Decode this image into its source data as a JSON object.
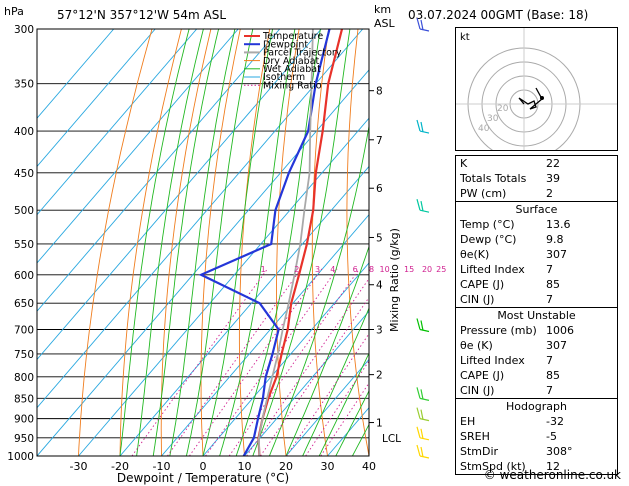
{
  "header": {
    "hpa_label": "hPa",
    "location": "57°12'N  357°12'W  54m  ASL",
    "km_label": "km",
    "asl_label": "ASL",
    "datetime": "03.07.2024  00GMT  (Base: 18)"
  },
  "chart_data": {
    "type": "line",
    "title": "57°12'N  357°12'W  54m  ASL",
    "xlabel": "Dewpoint / Temperature (°C)",
    "ylabel": "hPa",
    "xlim": [
      -40,
      40
    ],
    "ylim": [
      1000,
      300
    ],
    "pressure_levels": [
      300,
      350,
      400,
      450,
      500,
      550,
      600,
      650,
      700,
      750,
      800,
      850,
      900,
      950,
      1000
    ],
    "x_ticks": [
      -30,
      -20,
      -10,
      0,
      10,
      20,
      30,
      40
    ],
    "km_ticks": [
      {
        "km": "1",
        "p": 910
      },
      {
        "km": "2",
        "p": 795
      },
      {
        "km": "3",
        "p": 700
      },
      {
        "km": "4",
        "p": 617
      },
      {
        "km": "5",
        "p": 540
      },
      {
        "km": "6",
        "p": 470
      },
      {
        "km": "7",
        "p": 410
      },
      {
        "km": "8",
        "p": 357
      }
    ],
    "lcl": {
      "label": "LCL",
      "p": 950
    },
    "mixing_ratio_labels": [
      "1",
      "2",
      "3",
      "4",
      "6",
      "8",
      "10",
      "15",
      "20",
      "25"
    ],
    "mixing_ratio_values": [
      1,
      2,
      3,
      4,
      6,
      8,
      10,
      15,
      20,
      25
    ],
    "mixing_ratio_axis_label": "Mixing Ratio (g/kg)",
    "legend": [
      "Temperature",
      "Dewpoint",
      "Parcel Trajectory",
      "Dry Adiabat",
      "Wet Adiabat",
      "Isotherm",
      "Mixing Ratio"
    ],
    "series": [
      {
        "name": "Temperature",
        "color": "#e8322a",
        "p": [
          1000,
          950,
          900,
          850,
          800,
          750,
          700,
          650,
          600,
          550,
          500,
          450,
          400,
          350,
          300
        ],
        "values": [
          13.6,
          9.6,
          6.6,
          3.8,
          1.3,
          -2.2,
          -5.8,
          -10.4,
          -14.4,
          -18.9,
          -24.4,
          -31.5,
          -38.5,
          -47,
          -55
        ]
      },
      {
        "name": "Dewpoint",
        "color": "#2436d8",
        "p": [
          1000,
          950,
          900,
          850,
          800,
          750,
          700,
          650,
          600,
          550,
          500,
          450,
          400,
          350,
          300
        ],
        "values": [
          9.8,
          8.5,
          5.5,
          2.5,
          -1.3,
          -4.4,
          -8,
          -18,
          -38,
          -27.5,
          -33.5,
          -38,
          -42,
          -50,
          -58
        ]
      },
      {
        "name": "Parcel Trajectory",
        "color": "#a9a9a9",
        "p": [
          1000,
          950,
          900,
          850,
          800,
          750,
          700,
          650,
          600,
          550,
          500,
          450,
          400,
          350,
          300
        ],
        "values": [
          13.6,
          9.7,
          6.6,
          3.5,
          0.3,
          -3.1,
          -7,
          -11,
          -15.5,
          -20.5,
          -26.5,
          -33,
          -41.5,
          -51,
          -62
        ]
      }
    ]
  },
  "wind_barbs": [
    {
      "p": 1000,
      "color": "#ffd700"
    },
    {
      "p": 950,
      "color": "#ffd700"
    },
    {
      "p": 900,
      "color": "#9acd32"
    },
    {
      "p": 850,
      "color": "#32cd32"
    },
    {
      "p": 700,
      "color": "#00c000"
    },
    {
      "p": 500,
      "color": "#00c8a0"
    },
    {
      "p": 400,
      "color": "#00b4c8"
    },
    {
      "p": 300,
      "color": "#3a4fd8"
    }
  ],
  "hodograph": {
    "label": "kt",
    "ring_labels": [
      "40",
      "30",
      "20"
    ]
  },
  "indices": [
    {
      "label": "K",
      "value": "22"
    },
    {
      "label": "Totals Totals",
      "value": "39"
    },
    {
      "label": "PW (cm)",
      "value": "2"
    }
  ],
  "surface": {
    "title": "Surface",
    "rows": [
      {
        "label": "Temp (°C)",
        "value": "13.6"
      },
      {
        "label": "Dewp (°C)",
        "value": "9.8"
      },
      {
        "label": "θe(K)",
        "value": "307"
      },
      {
        "label": "Lifted Index",
        "value": "7"
      },
      {
        "label": "CAPE (J)",
        "value": "85"
      },
      {
        "label": "CIN (J)",
        "value": "7"
      }
    ]
  },
  "most_unstable": {
    "title": "Most Unstable",
    "rows": [
      {
        "label": "Pressure (mb)",
        "value": "1006"
      },
      {
        "label": "θe (K)",
        "value": "307"
      },
      {
        "label": "Lifted Index",
        "value": "7"
      },
      {
        "label": "CAPE (J)",
        "value": "85"
      },
      {
        "label": "CIN (J)",
        "value": "7"
      }
    ]
  },
  "hodograph_table": {
    "title": "Hodograph",
    "rows": [
      {
        "label": "EH",
        "value": "-32"
      },
      {
        "label": "SREH",
        "value": "-5"
      },
      {
        "label": "StmDir",
        "value": "308°"
      },
      {
        "label": "StmSpd (kt)",
        "value": "12"
      }
    ]
  },
  "copyright": "© weatheronline.co.uk"
}
